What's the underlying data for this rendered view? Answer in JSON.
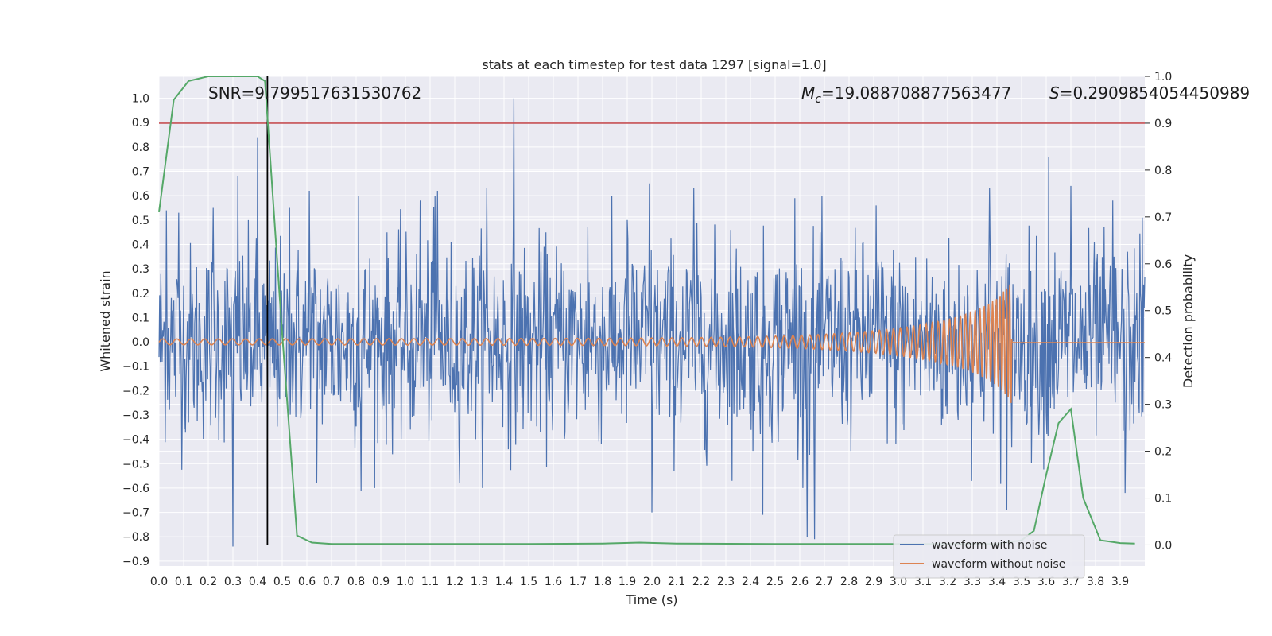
{
  "chart_data": {
    "type": "line",
    "title": "stats at each timestep for test data 1297 [signal=1.0]",
    "xlabel": "Time (s)",
    "ylabel": "Whitened strain",
    "y2label": "Detection probability",
    "xlim": [
      0.0,
      4.0
    ],
    "ylim": [
      -0.92,
      1.09
    ],
    "y2lim": [
      -0.045,
      1.0
    ],
    "x_ticks": [
      "0.0",
      "0.1",
      "0.2",
      "0.3",
      "0.4",
      "0.5",
      "0.6",
      "0.7",
      "0.8",
      "0.9",
      "1.0",
      "1.1",
      "1.2",
      "1.3",
      "1.4",
      "1.5",
      "1.6",
      "1.7",
      "1.8",
      "1.9",
      "2.0",
      "2.1",
      "2.2",
      "2.3",
      "2.4",
      "2.5",
      "2.6",
      "2.7",
      "2.8",
      "2.9",
      "3.0",
      "3.1",
      "3.2",
      "3.3",
      "3.4",
      "3.5",
      "3.6",
      "3.7",
      "3.8",
      "3.9"
    ],
    "y_ticks": [
      "1.0",
      "0.9",
      "0.8",
      "0.7",
      "0.6",
      "0.5",
      "0.4",
      "0.3",
      "0.2",
      "0.1",
      "0.0",
      "−0.1",
      "−0.2",
      "−0.3",
      "−0.4",
      "−0.5",
      "−0.6",
      "−0.7",
      "−0.8",
      "−0.9"
    ],
    "y2_ticks": [
      "1.0",
      "0.9",
      "0.8",
      "0.7",
      "0.6",
      "0.5",
      "0.4",
      "0.3",
      "0.2",
      "0.1",
      "0.0"
    ],
    "annotations": {
      "snr": "SNR=9.799517631530762",
      "mc_symbol": "M",
      "mc_sub": "c",
      "mc_value": "=19.088708877563477",
      "s_symbol": "S",
      "s_value": "=0.2909854054450989"
    },
    "legend": {
      "placement": "lower-right",
      "entries": [
        "waveform with noise",
        "waveform without noise"
      ]
    },
    "colors": {
      "noise": "#4c72b0",
      "signal": "#dd8452",
      "probability": "#55a868",
      "threshold": "#c44e52",
      "marker": "#000000",
      "background": "#eaeaf2",
      "grid": "#ffffff"
    },
    "series": [
      {
        "name": "waveform with noise",
        "noise_std": 0.2,
        "peaks": [
          [
            0.03,
            0.54
          ],
          [
            0.08,
            0.53
          ],
          [
            0.22,
            0.55
          ],
          [
            0.32,
            0.68
          ],
          [
            0.4,
            0.84
          ],
          [
            0.44,
            -0.4
          ],
          [
            0.53,
            0.55
          ],
          [
            0.61,
            0.62
          ],
          [
            0.81,
            0.6
          ],
          [
            1.06,
            0.58
          ],
          [
            1.12,
            0.6
          ],
          [
            1.13,
            0.62
          ],
          [
            1.33,
            0.63
          ],
          [
            1.44,
            1.0
          ],
          [
            1.74,
            0.47
          ],
          [
            1.9,
            0.5
          ],
          [
            1.99,
            0.65
          ],
          [
            2.0,
            -0.7
          ],
          [
            2.17,
            0.63
          ],
          [
            2.32,
            0.46
          ],
          [
            2.45,
            -0.71
          ],
          [
            2.58,
            0.59
          ],
          [
            2.63,
            -0.8
          ],
          [
            2.66,
            -0.81
          ],
          [
            2.91,
            0.56
          ],
          [
            3.37,
            0.63
          ],
          [
            3.44,
            -0.69
          ],
          [
            3.61,
            0.76
          ],
          [
            3.7,
            0.64
          ],
          [
            3.87,
            0.58
          ],
          [
            3.92,
            -0.62
          ],
          [
            3.99,
            0.51
          ],
          [
            0.3,
            -0.84
          ],
          [
            0.64,
            -0.58
          ],
          [
            0.82,
            -0.61
          ]
        ]
      },
      {
        "name": "waveform without noise",
        "t_merge": 3.46,
        "tau": 3.5,
        "amp0": 0.012,
        "max_amp": 0.45,
        "post_merge": -0.003
      },
      {
        "name": "detection probability",
        "axis": "y2",
        "t": [
          0.0,
          0.06,
          0.12,
          0.2,
          0.3,
          0.4,
          0.43,
          0.5,
          0.56,
          0.62,
          0.7,
          1.0,
          1.5,
          1.8,
          1.95,
          2.1,
          2.5,
          3.0,
          3.4,
          3.5,
          3.55,
          3.6,
          3.65,
          3.7,
          3.75,
          3.82,
          3.9,
          3.96
        ],
        "p": [
          0.71,
          0.95,
          0.99,
          1.0,
          1.0,
          1.0,
          0.99,
          0.45,
          0.02,
          0.005,
          0.002,
          0.002,
          0.002,
          0.003,
          0.005,
          0.003,
          0.002,
          0.002,
          0.002,
          0.01,
          0.03,
          0.15,
          0.26,
          0.29,
          0.1,
          0.01,
          0.004,
          0.003
        ]
      }
    ],
    "threshold_y2": 0.9,
    "marker_x": 0.44
  }
}
